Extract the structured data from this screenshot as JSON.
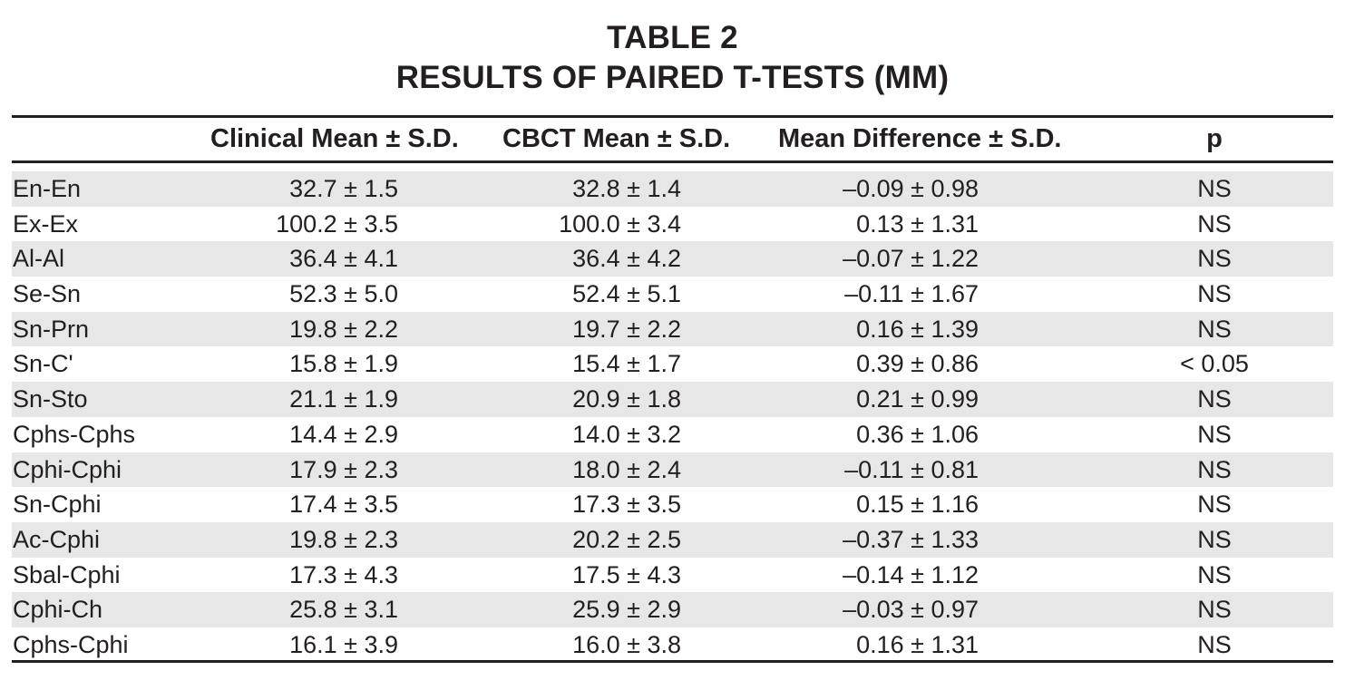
{
  "table": {
    "title_line1": "TABLE 2",
    "title_line2": "RESULTS OF PAIRED T-TESTS (MM)",
    "headers": {
      "measure": "",
      "clinical": "Clinical Mean ± S.D.",
      "cbct": "CBCT Mean ± S.D.",
      "difference": "Mean Difference ± S.D.",
      "p": "p"
    },
    "rows": [
      {
        "label": "En-En",
        "clinical": "32.7 ± 1.5",
        "cbct": "32.8 ± 1.4",
        "difference": "–0.09 ± 0.98",
        "p": "NS"
      },
      {
        "label": "Ex-Ex",
        "clinical": "100.2 ± 3.5",
        "cbct": "100.0 ± 3.4",
        "difference": "0.13 ± 1.31",
        "p": "NS"
      },
      {
        "label": "Al-Al",
        "clinical": "36.4 ± 4.1",
        "cbct": "36.4 ± 4.2",
        "difference": "–0.07 ± 1.22",
        "p": "NS"
      },
      {
        "label": "Se-Sn",
        "clinical": "52.3 ± 5.0",
        "cbct": "52.4 ± 5.1",
        "difference": "–0.11 ± 1.67",
        "p": "NS"
      },
      {
        "label": "Sn-Prn",
        "clinical": "19.8 ± 2.2",
        "cbct": "19.7 ± 2.2",
        "difference": "0.16 ± 1.39",
        "p": "NS"
      },
      {
        "label": "Sn-C'",
        "clinical": "15.8 ± 1.9",
        "cbct": "15.4 ± 1.7",
        "difference": "0.39 ± 0.86",
        "p": "< 0.05"
      },
      {
        "label": "Sn-Sto",
        "clinical": "21.1 ± 1.9",
        "cbct": "20.9 ± 1.8",
        "difference": "0.21 ± 0.99",
        "p": "NS"
      },
      {
        "label": "Cphs-Cphs",
        "clinical": "14.4 ± 2.9",
        "cbct": "14.0 ± 3.2",
        "difference": "0.36 ± 1.06",
        "p": "NS"
      },
      {
        "label": "Cphi-Cphi",
        "clinical": "17.9 ± 2.3",
        "cbct": "18.0 ± 2.4",
        "difference": "–0.11 ± 0.81",
        "p": "NS"
      },
      {
        "label": "Sn-Cphi",
        "clinical": "17.4 ± 3.5",
        "cbct": "17.3 ± 3.5",
        "difference": "0.15 ± 1.16",
        "p": "NS"
      },
      {
        "label": "Ac-Cphi",
        "clinical": "19.8 ± 2.3",
        "cbct": "20.2 ± 2.5",
        "difference": "–0.37 ± 1.33",
        "p": "NS"
      },
      {
        "label": "Sbal-Cphi",
        "clinical": "17.3 ± 4.3",
        "cbct": "17.5 ± 4.3",
        "difference": "–0.14 ± 1.12",
        "p": "NS"
      },
      {
        "label": "Cphi-Ch",
        "clinical": "25.8 ± 3.1",
        "cbct": "25.9 ± 2.9",
        "difference": "–0.03 ± 0.97",
        "p": "NS"
      },
      {
        "label": "Cphs-Cphi",
        "clinical": "16.1 ± 3.9",
        "cbct": "16.0 ± 3.8",
        "difference": "0.16 ± 1.31",
        "p": "NS"
      }
    ],
    "colors": {
      "text": "#231f20",
      "shade": "#e7e7e8",
      "rule": "#231f20"
    }
  }
}
